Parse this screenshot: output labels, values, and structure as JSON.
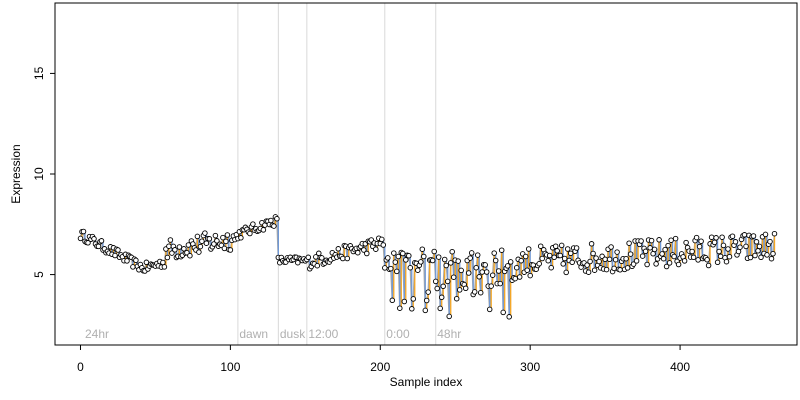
{
  "chart_data": {
    "type": "scatter",
    "title": "",
    "xlabel": "Sample index",
    "ylabel": "Expression",
    "xlim": [
      -17,
      478
    ],
    "ylim": [
      1.5,
      18.5
    ],
    "x_ticks": [
      0,
      100,
      200,
      300,
      400
    ],
    "y_ticks": [
      5,
      10,
      15
    ],
    "grid": false,
    "legend": "none",
    "colors": {
      "point_fill": "#ffffff",
      "point_stroke": "#000000",
      "up": "#f5a623",
      "down": "#6f98d6",
      "trend": "#a8a8a8",
      "vline": "#d9d9d9"
    },
    "annotations": [
      {
        "x": 3,
        "label": "24hr"
      },
      {
        "x": 106,
        "label": "dawn"
      },
      {
        "x": 133,
        "label": "dusk"
      },
      {
        "x": 152,
        "label": "12:00"
      },
      {
        "x": 204,
        "label": "0:00"
      },
      {
        "x": 238,
        "label": "48hr"
      }
    ],
    "vlines": [
      105,
      132,
      151,
      203,
      237
    ],
    "segments": [
      {
        "x0": 0,
        "x1": 40,
        "y0": 7.0,
        "y1": 5.4,
        "noise": 0.25,
        "dip": 0
      },
      {
        "x0": 41,
        "x1": 56,
        "y0": 5.3,
        "y1": 5.6,
        "noise": 0.25,
        "dip": 0
      },
      {
        "x0": 57,
        "x1": 104,
        "y0": 6.2,
        "y1": 6.8,
        "noise": 0.55,
        "dip": 0
      },
      {
        "x0": 105,
        "x1": 131,
        "y0": 7.0,
        "y1": 7.7,
        "noise": 0.25,
        "dip": 0
      },
      {
        "x0": 132,
        "x1": 150,
        "y0": 5.7,
        "y1": 5.7,
        "noise": 0.2,
        "dip": 0
      },
      {
        "x0": 151,
        "x1": 202,
        "y0": 5.6,
        "y1": 6.6,
        "noise": 0.35,
        "dip": 0
      },
      {
        "x0": 203,
        "x1": 236,
        "y0": 5.6,
        "y1": 5.8,
        "noise": 0.55,
        "dip": 0.12
      },
      {
        "x0": 237,
        "x1": 290,
        "y0": 5.2,
        "y1": 5.3,
        "noise": 0.95,
        "dip": 0.18
      },
      {
        "x0": 291,
        "x1": 463,
        "y0": 5.6,
        "y1": 6.4,
        "noise": 0.75,
        "dip": 0
      }
    ]
  }
}
